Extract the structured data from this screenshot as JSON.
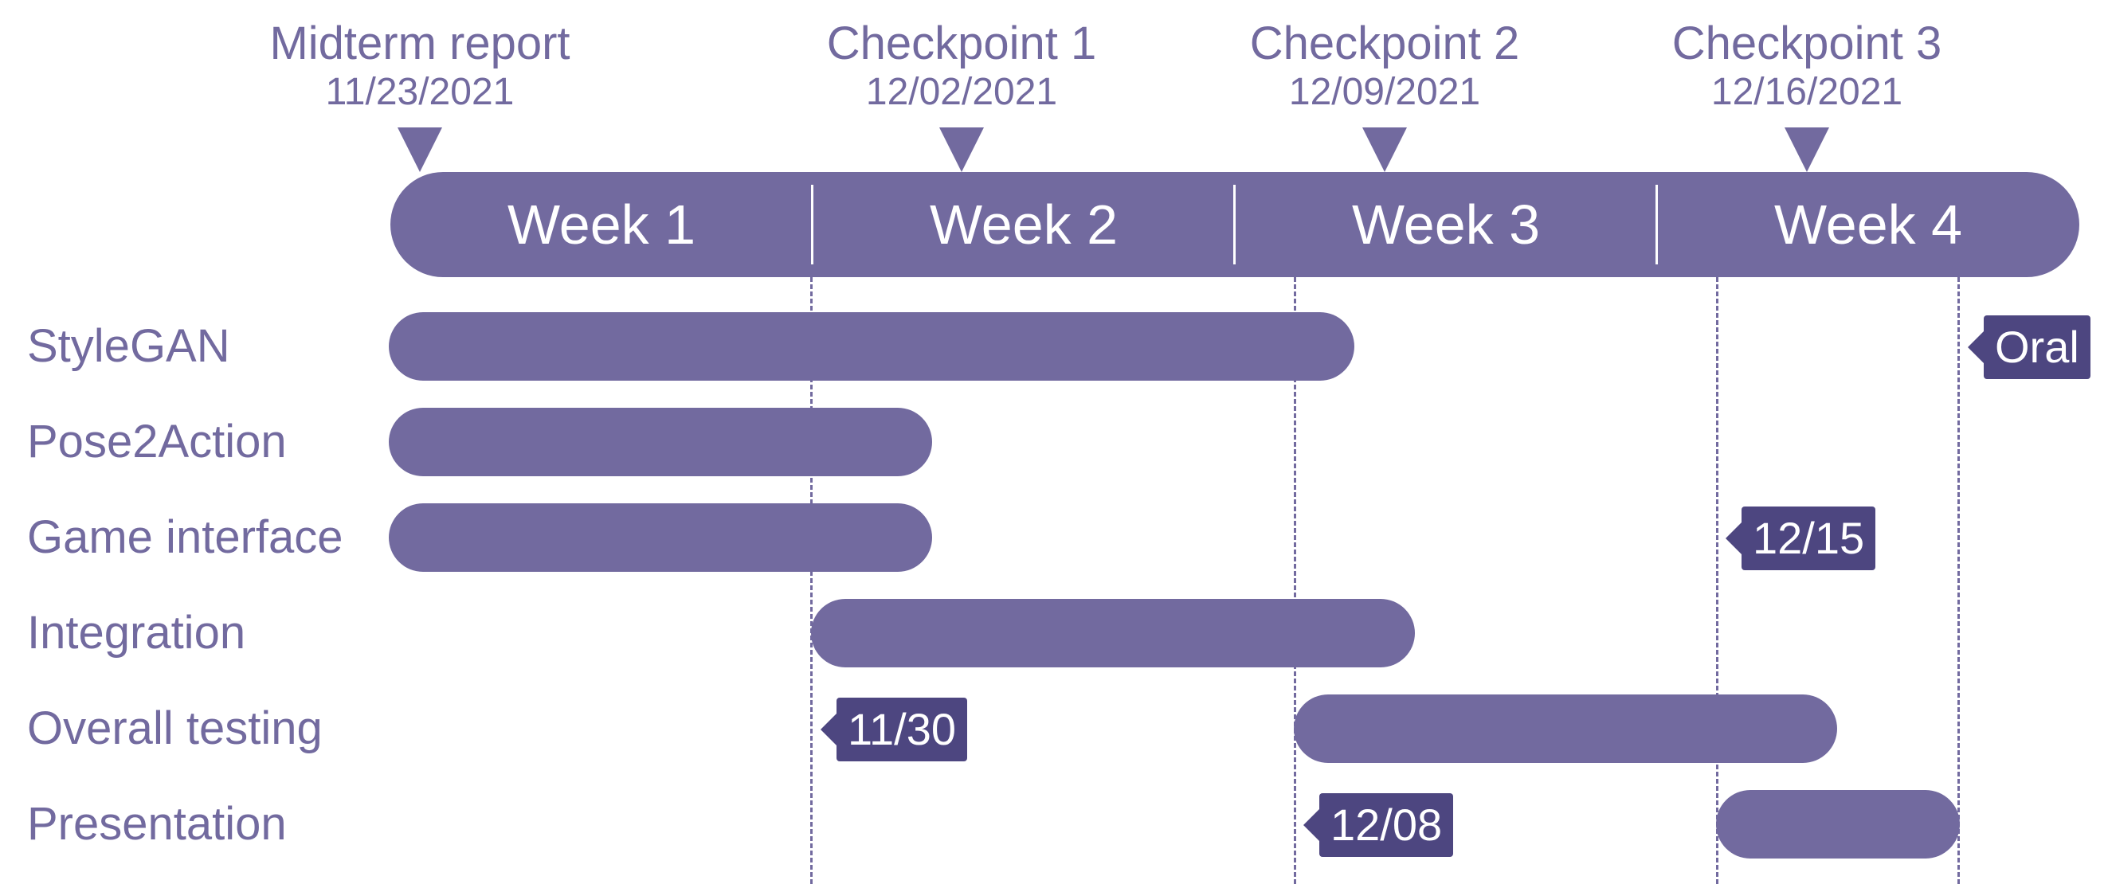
{
  "milestones": [
    {
      "label": "Midterm report",
      "date": "11/23/2021"
    },
    {
      "label": "Checkpoint 1",
      "date": "12/02/2021"
    },
    {
      "label": "Checkpoint 2",
      "date": "12/09/2021"
    },
    {
      "label": "Checkpoint 3",
      "date": "12/16/2021"
    }
  ],
  "weeks": [
    "Week 1",
    "Week 2",
    "Week 3",
    "Week 4"
  ],
  "tasks": [
    {
      "name": "StyleGAN"
    },
    {
      "name": "Pose2Action"
    },
    {
      "name": "Game interface"
    },
    {
      "name": "Integration"
    },
    {
      "name": "Overall testing"
    },
    {
      "name": "Presentation"
    }
  ],
  "tags": [
    {
      "text": "Oral"
    },
    {
      "text": "12/15"
    },
    {
      "text": "11/30"
    },
    {
      "text": "12/08"
    }
  ],
  "colors": {
    "primary": "#726a9f",
    "tag": "#4d4680",
    "background": "#ffffff",
    "text_on_bar": "#ffffff"
  }
}
